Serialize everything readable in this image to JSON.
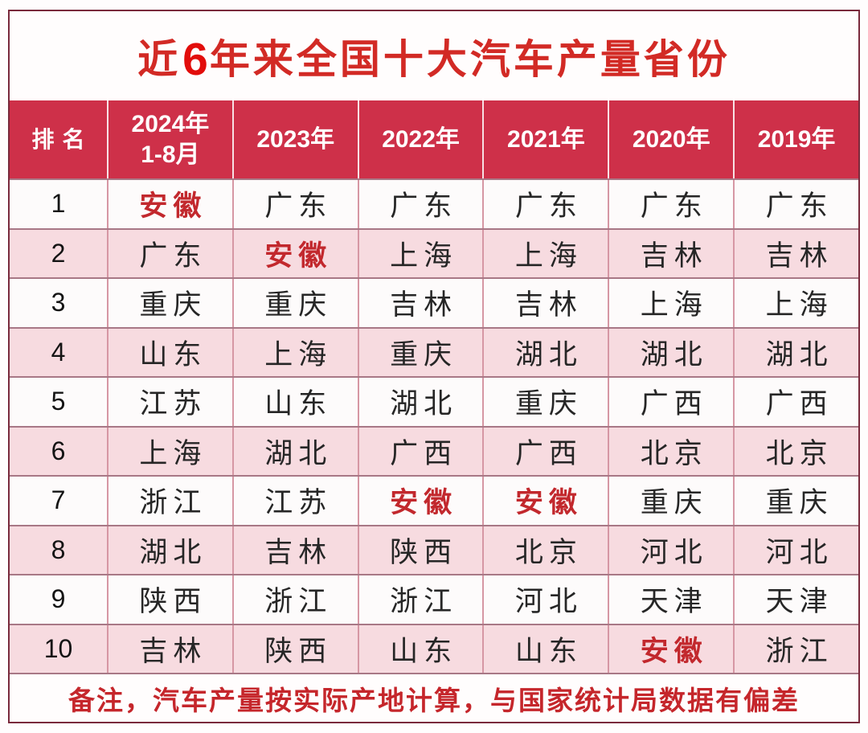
{
  "title": {
    "prefix": "近",
    "number": "6",
    "suffix": "年来全国十大汽车产量省份"
  },
  "chart_data": {
    "type": "table",
    "title": "近6年来全国十大汽车产量省份",
    "rank_header": "排名",
    "columns": [
      {
        "line1": "2024年",
        "line2": "1-8月"
      },
      {
        "line1": "2023年"
      },
      {
        "line1": "2022年"
      },
      {
        "line1": "2021年"
      },
      {
        "line1": "2020年"
      },
      {
        "line1": "2019年"
      }
    ],
    "rows": [
      {
        "rank": "1",
        "cells": [
          {
            "text": "安徽",
            "highlight": true
          },
          {
            "text": "广东"
          },
          {
            "text": "广东"
          },
          {
            "text": "广东"
          },
          {
            "text": "广东"
          },
          {
            "text": "广东"
          }
        ]
      },
      {
        "rank": "2",
        "cells": [
          {
            "text": "广东"
          },
          {
            "text": "安徽",
            "highlight": true
          },
          {
            "text": "上海"
          },
          {
            "text": "上海"
          },
          {
            "text": "吉林"
          },
          {
            "text": "吉林"
          }
        ]
      },
      {
        "rank": "3",
        "cells": [
          {
            "text": "重庆"
          },
          {
            "text": "重庆"
          },
          {
            "text": "吉林"
          },
          {
            "text": "吉林"
          },
          {
            "text": "上海"
          },
          {
            "text": "上海"
          }
        ]
      },
      {
        "rank": "4",
        "cells": [
          {
            "text": "山东"
          },
          {
            "text": "上海"
          },
          {
            "text": "重庆"
          },
          {
            "text": "湖北"
          },
          {
            "text": "湖北"
          },
          {
            "text": "湖北"
          }
        ]
      },
      {
        "rank": "5",
        "cells": [
          {
            "text": "江苏"
          },
          {
            "text": "山东"
          },
          {
            "text": "湖北"
          },
          {
            "text": "重庆"
          },
          {
            "text": "广西"
          },
          {
            "text": "广西"
          }
        ]
      },
      {
        "rank": "6",
        "cells": [
          {
            "text": "上海"
          },
          {
            "text": "湖北"
          },
          {
            "text": "广西"
          },
          {
            "text": "广西"
          },
          {
            "text": "北京"
          },
          {
            "text": "北京"
          }
        ]
      },
      {
        "rank": "7",
        "cells": [
          {
            "text": "浙江"
          },
          {
            "text": "江苏"
          },
          {
            "text": "安徽",
            "highlight": true
          },
          {
            "text": "安徽",
            "highlight": true
          },
          {
            "text": "重庆"
          },
          {
            "text": "重庆"
          }
        ]
      },
      {
        "rank": "8",
        "cells": [
          {
            "text": "湖北"
          },
          {
            "text": "吉林"
          },
          {
            "text": "陕西"
          },
          {
            "text": "北京"
          },
          {
            "text": "河北"
          },
          {
            "text": "河北"
          }
        ]
      },
      {
        "rank": "9",
        "cells": [
          {
            "text": "陕西"
          },
          {
            "text": "浙江"
          },
          {
            "text": "浙江"
          },
          {
            "text": "河北"
          },
          {
            "text": "天津"
          },
          {
            "text": "天津"
          }
        ]
      },
      {
        "rank": "10",
        "cells": [
          {
            "text": "吉林"
          },
          {
            "text": "陕西"
          },
          {
            "text": "山东"
          },
          {
            "text": "山东"
          },
          {
            "text": "安徽",
            "highlight": true
          },
          {
            "text": "浙江"
          }
        ]
      }
    ]
  },
  "footer": {
    "note": "备注，汽车产量按实际产地计算，与国家统计局数据有偏差"
  },
  "colors": {
    "header_bg": "#ce3049",
    "row_alt": "#f7dbe0",
    "highlight_red": "#c2282d",
    "title_red": "#d22a25",
    "grid_line_vertical": "#d697a4",
    "grid_line_horizontal": "#a87886",
    "outer_border": "#7a2a3c"
  }
}
